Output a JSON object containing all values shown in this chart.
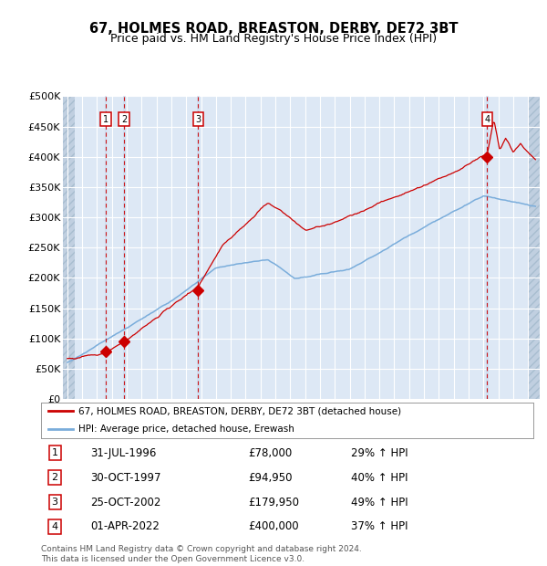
{
  "title": "67, HOLMES ROAD, BREASTON, DERBY, DE72 3BT",
  "subtitle": "Price paid vs. HM Land Registry's House Price Index (HPI)",
  "ylim": [
    0,
    500000
  ],
  "yticks": [
    0,
    50000,
    100000,
    150000,
    200000,
    250000,
    300000,
    350000,
    400000,
    450000,
    500000
  ],
  "ytick_labels": [
    "£0",
    "£50K",
    "£100K",
    "£150K",
    "£200K",
    "£250K",
    "£300K",
    "£350K",
    "£400K",
    "£450K",
    "£500K"
  ],
  "xlim_start": 1993.7,
  "xlim_end": 2025.8,
  "background_color": "#dde8f5",
  "hatch_color": "#c0cfe0",
  "grid_color": "#ffffff",
  "red_line_color": "#cc0000",
  "blue_line_color": "#7aaddb",
  "dashed_line_color": "#cc0000",
  "sale_points": [
    {
      "date_decimal": 1996.58,
      "price": 78000,
      "label": "1"
    },
    {
      "date_decimal": 1997.83,
      "price": 94950,
      "label": "2"
    },
    {
      "date_decimal": 2002.81,
      "price": 179950,
      "label": "3"
    },
    {
      "date_decimal": 2022.25,
      "price": 400000,
      "label": "4"
    }
  ],
  "legend_entries": [
    {
      "color": "#cc0000",
      "label": "67, HOLMES ROAD, BREASTON, DERBY, DE72 3BT (detached house)"
    },
    {
      "color": "#7aaddb",
      "label": "HPI: Average price, detached house, Erewash"
    }
  ],
  "table_data": [
    {
      "num": "1",
      "date": "31-JUL-1996",
      "price": "£78,000",
      "change": "29% ↑ HPI"
    },
    {
      "num": "2",
      "date": "30-OCT-1997",
      "price": "£94,950",
      "change": "40% ↑ HPI"
    },
    {
      "num": "3",
      "date": "25-OCT-2002",
      "price": "£179,950",
      "change": "49% ↑ HPI"
    },
    {
      "num": "4",
      "date": "01-APR-2022",
      "price": "£400,000",
      "change": "37% ↑ HPI"
    }
  ],
  "footer": "Contains HM Land Registry data © Crown copyright and database right 2024.\nThis data is licensed under the Open Government Licence v3.0."
}
